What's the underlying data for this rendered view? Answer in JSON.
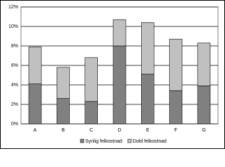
{
  "chart_data": {
    "type": "stacked-bar",
    "categories": [
      "A",
      "B",
      "C",
      "D",
      "E",
      "F",
      "G"
    ],
    "series": [
      {
        "name": "Synlig felkostnad",
        "color": "#808080",
        "values": [
          4.1,
          2.6,
          2.3,
          8.0,
          5.1,
          3.4,
          3.9
        ]
      },
      {
        "name": "Dold felkostnad",
        "color": "#c0c0c0",
        "values": [
          3.8,
          3.2,
          4.5,
          2.7,
          5.3,
          5.3,
          4.4
        ]
      }
    ],
    "ylim": [
      0,
      12
    ],
    "yticks": [
      {
        "value": 0,
        "label": "0%"
      },
      {
        "value": 2,
        "label": "2%"
      },
      {
        "value": 4,
        "label": "4%"
      },
      {
        "value": 6,
        "label": "6%"
      },
      {
        "value": 8,
        "label": "8%"
      },
      {
        "value": 10,
        "label": "10%"
      },
      {
        "value": 12,
        "label": "12%"
      }
    ],
    "grid": true,
    "legend": "bottom"
  }
}
